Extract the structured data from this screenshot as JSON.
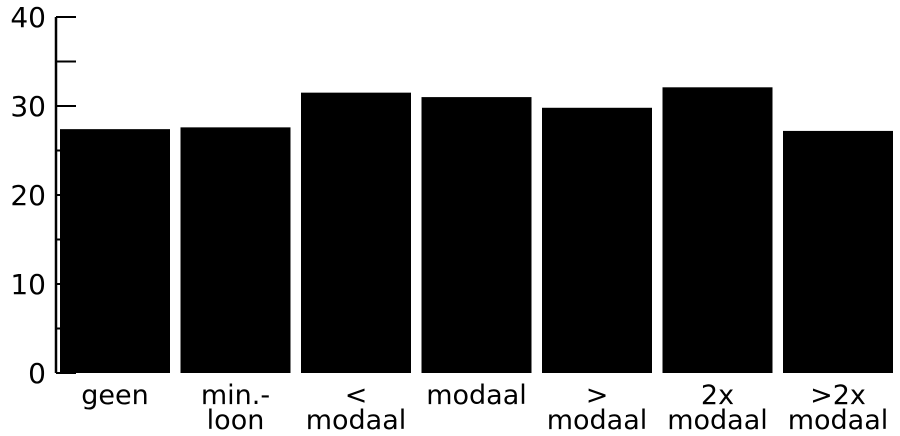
{
  "chart_data": {
    "type": "bar",
    "categories": [
      [
        "geen"
      ],
      [
        "min.-",
        "loon"
      ],
      [
        "<",
        "modaal"
      ],
      [
        "modaal"
      ],
      [
        ">",
        "modaal"
      ],
      [
        "2x",
        "modaal"
      ],
      [
        ">2x",
        "modaal"
      ]
    ],
    "values": [
      27.4,
      27.6,
      31.5,
      31.0,
      29.8,
      32.1,
      27.2
    ],
    "ylim": [
      0,
      40
    ],
    "yticks": [
      0,
      10,
      20,
      30,
      40
    ],
    "yticks_minor": [
      5,
      15,
      25,
      35
    ],
    "bar_color": "#000000",
    "title": "",
    "xlabel": "",
    "ylabel": ""
  }
}
